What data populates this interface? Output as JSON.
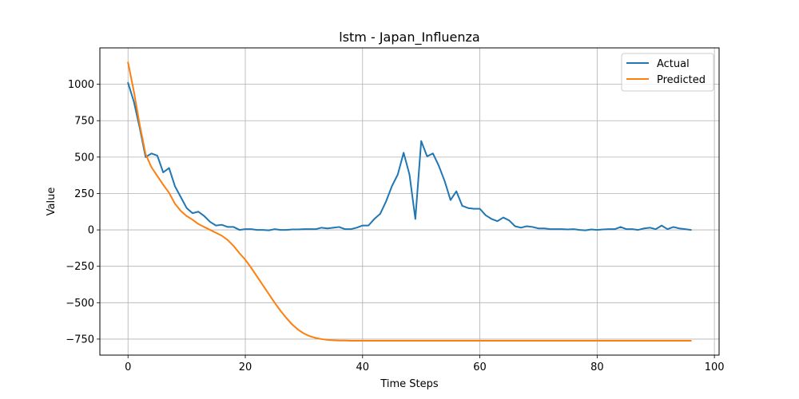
{
  "chart_data": {
    "type": "line",
    "title": "lstm - Japan_Influenza",
    "xlabel": "Time Steps",
    "ylabel": "Value",
    "xlim": [
      -4.8,
      100.8
    ],
    "ylim": [
      -860,
      1250
    ],
    "xticks": [
      0,
      20,
      40,
      60,
      80,
      100
    ],
    "yticks": [
      -750,
      -500,
      -250,
      0,
      250,
      500,
      750,
      1000
    ],
    "grid": true,
    "legend_position": "top-right",
    "series": [
      {
        "name": "Actual",
        "color": "#1f77b4",
        "x": [
          0,
          1,
          2,
          3,
          4,
          5,
          6,
          7,
          8,
          9,
          10,
          11,
          12,
          13,
          14,
          15,
          16,
          17,
          18,
          19,
          20,
          21,
          22,
          23,
          24,
          25,
          26,
          27,
          28,
          29,
          30,
          31,
          32,
          33,
          34,
          35,
          36,
          37,
          38,
          39,
          40,
          41,
          42,
          43,
          44,
          45,
          46,
          47,
          48,
          49,
          50,
          51,
          52,
          53,
          54,
          55,
          56,
          57,
          58,
          59,
          60,
          61,
          62,
          63,
          64,
          65,
          66,
          67,
          68,
          69,
          70,
          71,
          72,
          73,
          74,
          75,
          76,
          77,
          78,
          79,
          80,
          81,
          82,
          83,
          84,
          85,
          86,
          87,
          88,
          89,
          90,
          91,
          92,
          93,
          94,
          95,
          96
        ],
        "values": [
          1010,
          880,
          700,
          500,
          525,
          510,
          395,
          425,
          300,
          225,
          150,
          115,
          125,
          95,
          55,
          30,
          35,
          20,
          20,
          0,
          5,
          5,
          0,
          0,
          -3,
          5,
          0,
          0,
          3,
          3,
          5,
          5,
          5,
          15,
          10,
          15,
          20,
          5,
          5,
          15,
          30,
          30,
          75,
          110,
          195,
          300,
          380,
          530,
          380,
          75,
          610,
          505,
          525,
          440,
          335,
          205,
          265,
          165,
          150,
          145,
          145,
          100,
          75,
          60,
          85,
          65,
          25,
          15,
          25,
          20,
          10,
          10,
          5,
          5,
          5,
          3,
          5,
          0,
          -3,
          3,
          0,
          3,
          5,
          5,
          20,
          5,
          5,
          0,
          10,
          15,
          5,
          30,
          5,
          20,
          10,
          5,
          0
        ]
      },
      {
        "name": "Predicted",
        "color": "#ff7f0e",
        "x": [
          0,
          1,
          2,
          3,
          4,
          5,
          6,
          7,
          8,
          9,
          10,
          11,
          12,
          13,
          14,
          15,
          16,
          17,
          18,
          19,
          20,
          21,
          22,
          23,
          24,
          25,
          26,
          27,
          28,
          29,
          30,
          31,
          32,
          33,
          34,
          35,
          36,
          37,
          38,
          39,
          40,
          41,
          42,
          43,
          44,
          45,
          46,
          47,
          48,
          49,
          50,
          51,
          52,
          53,
          54,
          55,
          56,
          57,
          58,
          59,
          60,
          61,
          62,
          63,
          64,
          65,
          66,
          67,
          68,
          69,
          70,
          71,
          72,
          73,
          74,
          75,
          76,
          77,
          78,
          79,
          80,
          81,
          82,
          83,
          84,
          85,
          86,
          87,
          88,
          89,
          90,
          91,
          92,
          93,
          94,
          95,
          96
        ],
        "values": [
          1150,
          950,
          720,
          520,
          430,
          370,
          310,
          255,
          180,
          130,
          95,
          70,
          40,
          20,
          0,
          -20,
          -40,
          -70,
          -110,
          -160,
          -205,
          -260,
          -320,
          -380,
          -440,
          -500,
          -555,
          -605,
          -650,
          -685,
          -712,
          -730,
          -742,
          -750,
          -755,
          -758,
          -760,
          -760,
          -761,
          -761,
          -761,
          -761,
          -761,
          -761,
          -761,
          -761,
          -761,
          -761,
          -761,
          -761,
          -761,
          -761,
          -761,
          -761,
          -761,
          -761,
          -761,
          -761,
          -761,
          -761,
          -761,
          -761,
          -761,
          -761,
          -761,
          -761,
          -761,
          -761,
          -761,
          -761,
          -761,
          -761,
          -761,
          -761,
          -761,
          -761,
          -761,
          -761,
          -761,
          -761,
          -761,
          -761,
          -761,
          -761,
          -761,
          -761,
          -761,
          -761,
          -761,
          -761,
          -761,
          -761,
          -761,
          -761,
          -761,
          -761,
          -761
        ]
      }
    ]
  }
}
